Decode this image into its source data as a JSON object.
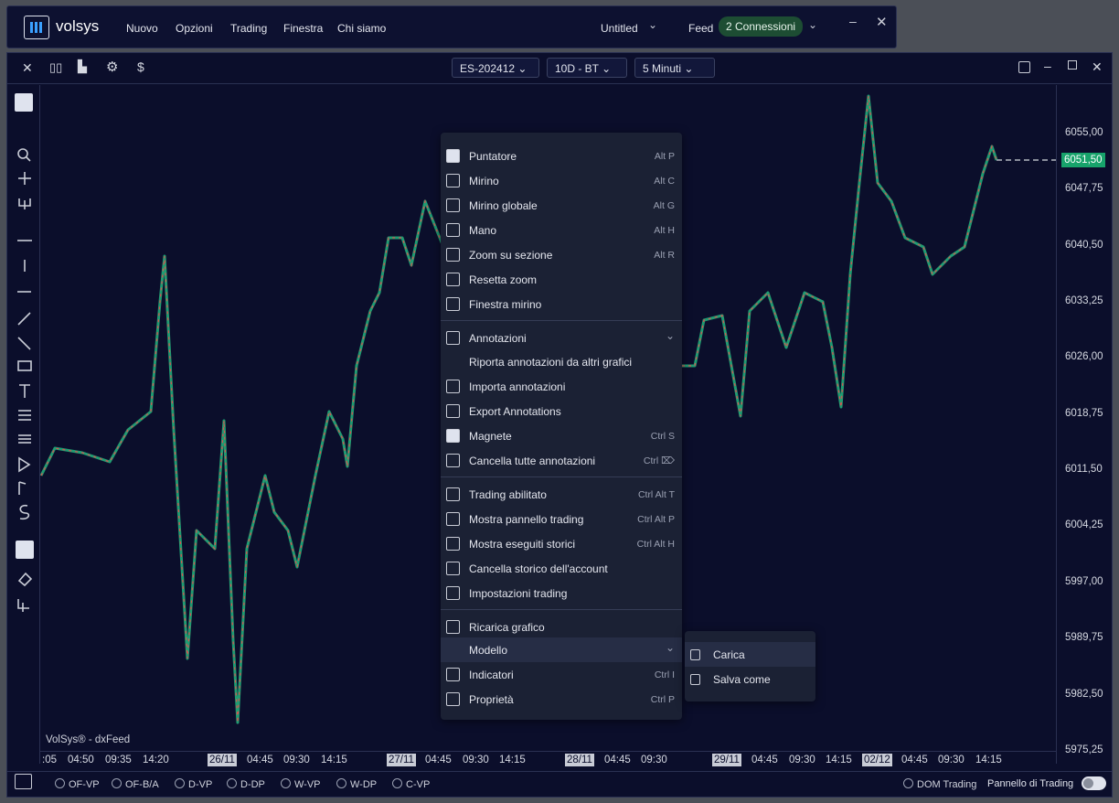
{
  "app": {
    "logo": "volsys",
    "menu": [
      "Nuovo",
      "Opzioni",
      "Trading",
      "Finestra",
      "Chi siamo"
    ],
    "workspace": "Untitled",
    "feed_label": "Feed",
    "connections": "2 Connessioni"
  },
  "toolbar": {
    "symbol": "ES-202412",
    "range": "10D - BT",
    "interval": "5 Minuti"
  },
  "chart": {
    "watermark": "VolSys® - dxFeed",
    "last_price": "6051,50",
    "price_labels": [
      "6055,00",
      "6047,75",
      "6040,50",
      "6033,25",
      "6026,00",
      "6018,75",
      "6011,50",
      "6004,25",
      "5997,00",
      "5989,75",
      "5982,50",
      "5975,25"
    ],
    "time_labels": [
      ":05",
      "04:50",
      "09:35",
      "14:20",
      "26/11",
      "04:45",
      "09:30",
      "14:15",
      "27/11",
      "04:45",
      "09:30",
      "14:15",
      "28/11",
      "04:45",
      "09:30",
      "29/11",
      "04:45",
      "09:30",
      "14:15",
      "02/12",
      "04:45",
      "09:30",
      "14:15"
    ]
  },
  "context_menu": {
    "groups": [
      [
        {
          "label": "Puntatore",
          "shortcut": "Alt P"
        },
        {
          "label": "Mirino",
          "shortcut": "Alt C"
        },
        {
          "label": "Mirino globale",
          "shortcut": "Alt G"
        },
        {
          "label": "Mano",
          "shortcut": "Alt H"
        },
        {
          "label": "Zoom su sezione",
          "shortcut": "Alt R"
        },
        {
          "label": "Resetta zoom"
        },
        {
          "label": "Finestra mirino"
        }
      ],
      [
        {
          "label": "Annotazioni"
        },
        {
          "label": "Riporta annotazioni da altri grafici"
        },
        {
          "label": "Importa annotazioni"
        },
        {
          "label": "Export Annotations"
        },
        {
          "label": "Magnete",
          "shortcut": "Ctrl S"
        },
        {
          "label": "Cancella tutte annotazioni",
          "shortcut": "Ctrl ⌦"
        }
      ],
      [
        {
          "label": "Trading abilitato",
          "shortcut": "Ctrl Alt T"
        },
        {
          "label": "Mostra pannello trading",
          "shortcut": "Ctrl Alt P"
        },
        {
          "label": "Mostra eseguiti storici",
          "shortcut": "Ctrl Alt H"
        },
        {
          "label": "Cancella storico dell'account"
        },
        {
          "label": "Impostazioni trading"
        }
      ],
      [
        {
          "label": "Ricarica grafico"
        },
        {
          "label": "Modello"
        },
        {
          "label": "Indicatori",
          "shortcut": "Ctrl I"
        },
        {
          "label": "Proprietà",
          "shortcut": "Ctrl P"
        }
      ]
    ]
  },
  "submenu": [
    "Carica",
    "Salva come"
  ],
  "footer": {
    "indicators": [
      "OF-VP",
      "OF-B/A",
      "D-VP",
      "D-DP",
      "W-VP",
      "W-DP",
      "C-VP"
    ],
    "dom": "DOM Trading",
    "panel": "Pannello di Trading"
  }
}
